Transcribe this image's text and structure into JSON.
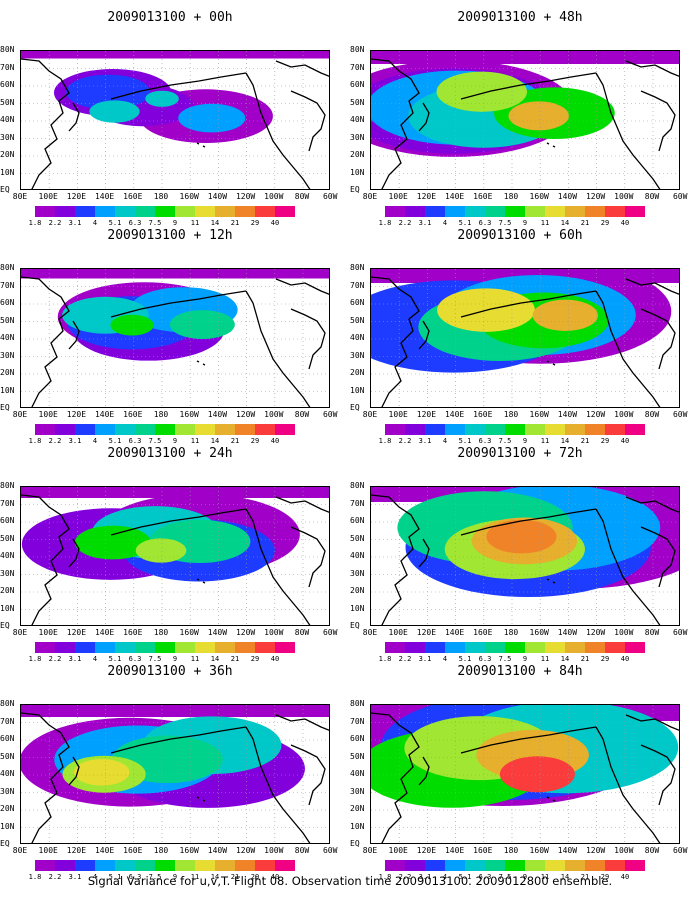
{
  "caption": "Signal Variance for u,v,T. Flight 08. Observation time 2009013100. 2009012800 ensemble.",
  "panels": [
    {
      "title": "2009013100 + 00h",
      "level": 0.15
    },
    {
      "title": "2009013100 + 48h",
      "level": 0.7
    },
    {
      "title": "2009013100 + 12h",
      "level": 0.35
    },
    {
      "title": "2009013100 + 60h",
      "level": 0.8
    },
    {
      "title": "2009013100 + 24h",
      "level": 0.5
    },
    {
      "title": "2009013100 + 72h",
      "level": 0.9
    },
    {
      "title": "2009013100 + 36h",
      "level": 0.6
    },
    {
      "title": "2009013100 + 84h",
      "level": 1.0
    }
  ],
  "lat_labels": [
    "80N",
    "70N",
    "60N",
    "50N",
    "40N",
    "30N",
    "20N",
    "10N",
    "EQ"
  ],
  "lon_labels": [
    "80E",
    "100E",
    "120E",
    "140E",
    "160E",
    "180",
    "160W",
    "140W",
    "120W",
    "100W",
    "80W",
    "60W"
  ],
  "colorbar": {
    "labels": [
      "1.8",
      "2.2",
      "3.1",
      "4",
      "5.1",
      "6.3",
      "7.5",
      "9",
      "11",
      "14",
      "21",
      "29",
      "40"
    ],
    "colors": [
      "#a000c8",
      "#8200dc",
      "#1e3cff",
      "#00a0ff",
      "#00c8c8",
      "#00d28c",
      "#00dc00",
      "#a0e632",
      "#e6dc32",
      "#e6af2d",
      "#f08228",
      "#fa3c3c",
      "#f00082"
    ]
  }
}
